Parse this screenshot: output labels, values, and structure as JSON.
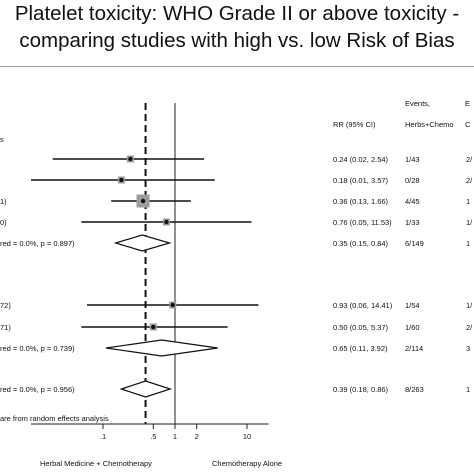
{
  "title_line1": "Platelet toxicity: WHO Grade II or above toxicity -",
  "title_line2": "comparing studies with high vs. low Risk of Bias",
  "headers": {
    "rr": "RR (95% CI)",
    "events": "Events,",
    "herbs": "Herbs+Chemo",
    "col_e": "E",
    "col_c": "C"
  },
  "group_label_partial": "s",
  "footnote": "are from random effects analysis",
  "axis_labels": {
    "left": "Herbal Medicine + Chemotherapy",
    "right": "Chemotherapy Alone"
  },
  "chart_data": {
    "type": "forest",
    "x_scale": "log",
    "xlim": [
      0.01,
      20
    ],
    "ticks": [
      ".1",
      ".5",
      "1",
      "2",
      "10"
    ],
    "tick_values": [
      0.1,
      0.5,
      1,
      2,
      10
    ],
    "null_line": 1,
    "overall_line": 0.39,
    "rows": [
      {
        "kind": "study",
        "label": "",
        "rr": 0.24,
        "lo": 0.02,
        "hi": 2.54,
        "ci_text": "0.24 (0.02, 2.54)",
        "events": "1/43",
        "other": "2/"
      },
      {
        "kind": "study",
        "label": "",
        "rr": 0.18,
        "lo": 0.01,
        "hi": 3.57,
        "ci_text": "0.18 (0.01, 3.57)",
        "events": "0/28",
        "other": "2/"
      },
      {
        "kind": "study",
        "label": "1)",
        "rr": 0.36,
        "lo": 0.13,
        "hi": 1.66,
        "ci_text": "0.36 (0.13, 1.66)",
        "events": "4/45",
        "other": "1"
      },
      {
        "kind": "study",
        "label": "0)",
        "rr": 0.76,
        "lo": 0.05,
        "hi": 11.53,
        "ci_text": "0.76 (0.05, 11.53)",
        "events": "1/33",
        "other": "1/"
      },
      {
        "kind": "subtotal",
        "label": "red = 0.0%, p = 0.897)",
        "rr": 0.35,
        "lo": 0.15,
        "hi": 0.84,
        "ci_text": "0.35 (0.15, 0.84)",
        "events": "6/149",
        "other": "1"
      },
      {
        "kind": "study",
        "label": "72)",
        "rr": 0.93,
        "lo": 0.06,
        "hi": 14.41,
        "ci_text": "0.93 (0.06, 14.41)",
        "events": "1/54",
        "other": "1/"
      },
      {
        "kind": "study",
        "label": "71)",
        "rr": 0.5,
        "lo": 0.05,
        "hi": 5.37,
        "ci_text": "0.50 (0.05, 5.37)",
        "events": "1/60",
        "other": "2/"
      },
      {
        "kind": "subtotal",
        "label": "red = 0.0%, p = 0.739)",
        "rr": 0.65,
        "lo": 0.11,
        "hi": 3.92,
        "ci_text": "0.65 (0.11, 3.92)",
        "events": "2/114",
        "other": "3"
      },
      {
        "kind": "overall",
        "label": "red = 0.0%, p = 0.956)",
        "rr": 0.39,
        "lo": 0.18,
        "hi": 0.86,
        "ci_text": "0.39 (0.18, 0.86)",
        "events": "8/263",
        "other": "1"
      }
    ]
  }
}
